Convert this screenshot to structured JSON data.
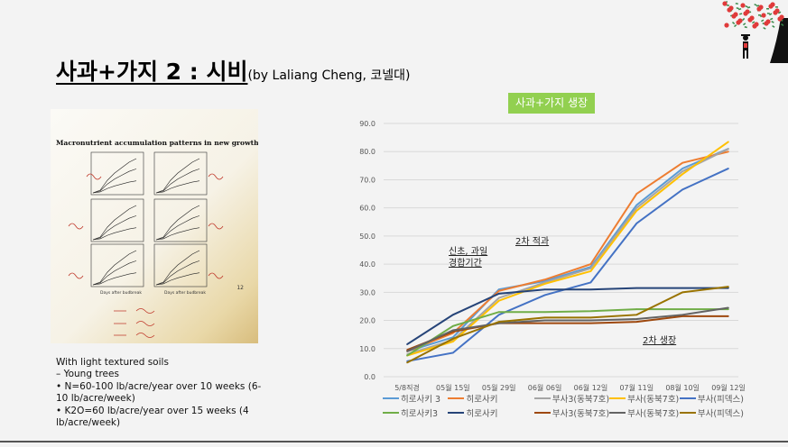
{
  "slide": {
    "title": "사과+가지 2 : 시비",
    "subtitle": "(by Laliang Cheng, 코넬대)"
  },
  "photo": {
    "printed_title": "Macronutrient accumulation patterns in new growth",
    "x_axis_label": "Days after budbreak",
    "page_number": "12"
  },
  "notes": [
    "With light textured soils",
    "– Young trees",
    "• N=60-100 lb/acre/year over 10 weeks (6-10 lb/acre/week)",
    "• K2O=60 lb/acre/year over 15 weeks (4 lb/acre/week)"
  ],
  "chart_data": {
    "type": "line",
    "title": "사과+가지 생장",
    "title_bg": "#92d050",
    "categories": [
      "5/8직경",
      "05월 15일",
      "05월 29일",
      "06월 06일",
      "06월 12일",
      "07월 11일",
      "08월 10일",
      "09월 12일"
    ],
    "ylim": [
      0,
      90
    ],
    "yticks": [
      "0.0",
      "10.0",
      "20.0",
      "30.0",
      "40.0",
      "50.0",
      "60.0",
      "70.0",
      "80.0",
      "90.0"
    ],
    "grid": true,
    "legend_position": "bottom",
    "annotations": [
      "신초, 과일\n경합기간",
      "2차 적과",
      "2차 생장"
    ],
    "series": [
      {
        "name": "히로사키 3",
        "color": "#5b9bd5",
        "values": [
          9,
          14,
          31,
          34,
          39,
          61,
          74,
          81
        ]
      },
      {
        "name": "히로사키",
        "color": "#ed7d31",
        "values": [
          9,
          15.5,
          30.5,
          34.5,
          40,
          65,
          76,
          80
        ]
      },
      {
        "name": "부사3(동북7호)",
        "color": "#a5a5a5",
        "values": [
          8,
          13,
          28,
          33.5,
          38.5,
          60,
          73,
          81
        ]
      },
      {
        "name": "부사(동북7호)",
        "color": "#ffc000",
        "values": [
          7.5,
          12.5,
          27,
          33,
          37.5,
          59,
          72,
          83.5
        ]
      },
      {
        "name": "부사(피덱스)",
        "color": "#4472c4",
        "values": [
          5.5,
          8.5,
          22,
          29,
          33.5,
          54.5,
          66.5,
          74
        ]
      },
      {
        "name": "히로사키3",
        "color": "#70ad47",
        "values": [
          7.5,
          18,
          23,
          23,
          23.3,
          24,
          24,
          24
        ]
      },
      {
        "name": "히로사키",
        "color": "#264478",
        "values": [
          11.5,
          22,
          29.5,
          31,
          31,
          31.5,
          31.5,
          31.5
        ]
      },
      {
        "name": "부사3(동북7호)",
        "color": "#9e480e",
        "values": [
          9.5,
          16,
          19,
          19,
          19,
          19.5,
          21.5,
          21.5
        ]
      },
      {
        "name": "부사(동북7호)",
        "color": "#636363",
        "values": [
          9,
          16.5,
          19,
          20,
          20,
          20.5,
          22,
          24.5
        ]
      },
      {
        "name": "부사(피덱스)",
        "color": "#997300",
        "values": [
          5,
          13.5,
          19.5,
          21,
          21,
          22,
          30,
          32
        ]
      }
    ]
  }
}
